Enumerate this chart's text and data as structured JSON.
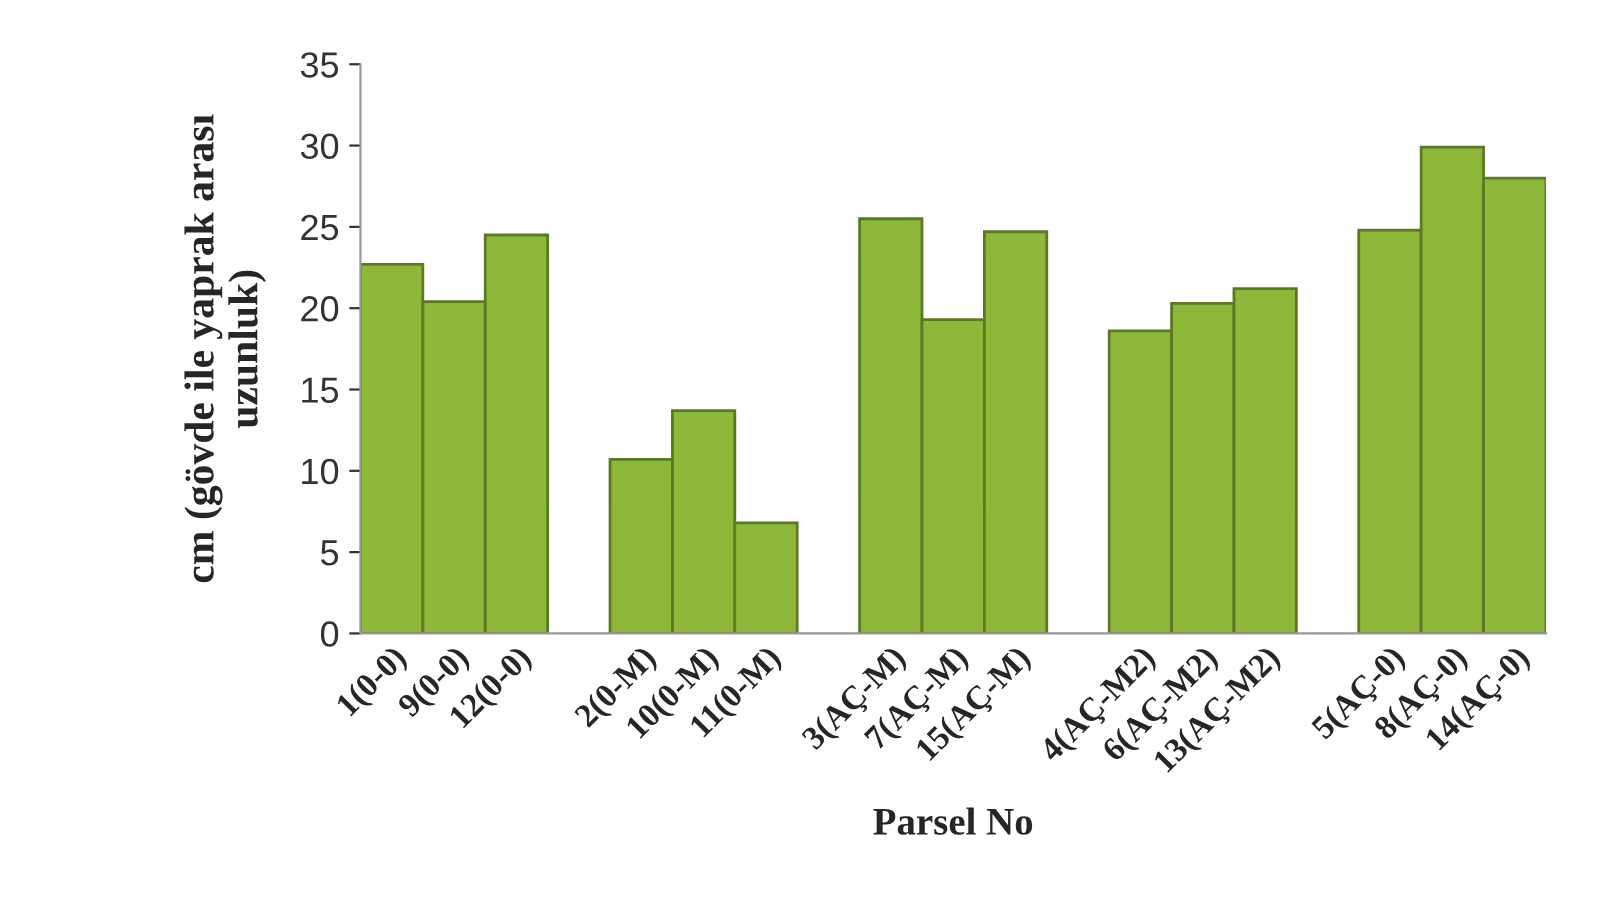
{
  "chart_data": {
    "type": "bar",
    "xlabel": "Parsel No",
    "ylabel": "cm (gövde ile yaprak arası\nuzunluk)",
    "categories": [
      "1(0-0)",
      "9(0-0)",
      "12(0-0)",
      null,
      "2(0-M)",
      "10(0-M)",
      "11(0-M)",
      null,
      "3(AÇ-M)",
      "7(AÇ-M)",
      "15(AÇ-M)",
      null,
      "4(AÇ-M2)",
      "6(AÇ-M2)",
      "13(AÇ-M2)",
      null,
      "5(AÇ-0)",
      "8(AÇ-0)",
      "14(AÇ-0)"
    ],
    "values": [
      22.7,
      20.4,
      24.5,
      null,
      10.7,
      13.7,
      6.8,
      null,
      25.5,
      19.3,
      24.7,
      null,
      18.6,
      20.3,
      21.2,
      null,
      24.8,
      29.9,
      28.0
    ],
    "color": "#8db83a",
    "ylim": [
      0,
      35
    ],
    "yticks": [
      0,
      5,
      10,
      15,
      20,
      25,
      30,
      35
    ],
    "grid": false,
    "legend": false
  }
}
